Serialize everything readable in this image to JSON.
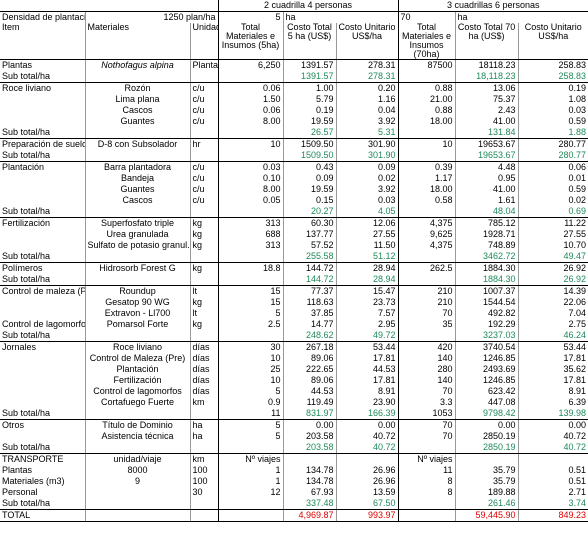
{
  "header": {
    "groups": [
      "2 cuadrilla 4 personas",
      "3 cuadrillas 6 personas"
    ],
    "density_label": "Densidad de plantación",
    "density_value": "1250 plan/ha",
    "area_1": [
      "5",
      "ha"
    ],
    "area_2": [
      "70",
      "ha"
    ],
    "columns": [
      "Item",
      "Materiales",
      "Unidad",
      "Total Materiales e Insumos (5ha)",
      "Costo Total 5 ha (US$)",
      "Costo Unitario US$/ha",
      "Total Materiales e Insumos (70ha)",
      "Costo Total 70 ha (US$)",
      "Costo Unitario US$/ha"
    ]
  },
  "table": {
    "sections": [
      {
        "rows": [
          [
            "Plantas",
            "Nothofagus alpina",
            "Plantas",
            "6,250",
            "1391.57",
            "278.31",
            "87500",
            "18118.23",
            "258.83"
          ]
        ],
        "subtotal": [
          "Sub total/ha",
          null,
          null,
          null,
          "1391.57",
          "278.31",
          null,
          "18,118.23",
          "258.83"
        ]
      },
      {
        "rows": [
          [
            "Roce liviano",
            "Rozón",
            "c/u",
            "0.06",
            "1.00",
            "0.20",
            "0.88",
            "13.06",
            "0.19"
          ],
          [
            null,
            "Lima plana",
            "c/u",
            "1.50",
            "5.79",
            "1.16",
            "21.00",
            "75.37",
            "1.08"
          ],
          [
            null,
            "Cascos",
            "c/u",
            "0.06",
            "0.19",
            "0.04",
            "0.88",
            "2.43",
            "0.03"
          ],
          [
            null,
            "Guantes",
            "c/u",
            "8.00",
            "19.59",
            "3.92",
            "18.00",
            "41.00",
            "0.59"
          ]
        ],
        "subtotal": [
          "Sub total/ha",
          null,
          null,
          null,
          "26.57",
          "5.31",
          null,
          "131.84",
          "1.88"
        ]
      },
      {
        "rows": [
          [
            "Preparación de suelo",
            "D-8 con Subsolador",
            "hr",
            "10",
            "1509.50",
            "301.90",
            "10",
            "19653.67",
            "280.77"
          ]
        ],
        "subtotal": [
          "Sub total/ha",
          null,
          null,
          null,
          "1509.50",
          "301.90",
          null,
          "19653.67",
          "280.77"
        ]
      },
      {
        "rows": [
          [
            "Plantación",
            "Barra plantadora",
            "c/u",
            "0.03",
            "0.43",
            "0.09",
            "0.39",
            "4.48",
            "0.06"
          ],
          [
            null,
            "Bandeja",
            "c/u",
            "0.10",
            "0.09",
            "0.02",
            "1.17",
            "0.95",
            "0.01"
          ],
          [
            null,
            "Guantes",
            "c/u",
            "8.00",
            "19.59",
            "3.92",
            "18.00",
            "41.00",
            "0.59"
          ],
          [
            null,
            "Cascos",
            "c/u",
            "0.05",
            "0.15",
            "0.03",
            "0.58",
            "1.61",
            "0.02"
          ]
        ],
        "subtotal": [
          "Sub total/ha",
          null,
          null,
          null,
          "20.27",
          "4.05",
          null,
          "48.04",
          "0.69"
        ]
      },
      {
        "rows": [
          [
            "Fertilización",
            "Superfosfato triple",
            "kg",
            "313",
            "60.30",
            "12.06",
            "4,375",
            "785.12",
            "11.22"
          ],
          [
            null,
            "Urea granulada",
            "kg",
            "688",
            "137.77",
            "27.55",
            "9,625",
            "1928.71",
            "27.55"
          ],
          [
            null,
            "Sulfato de potasio granul.",
            "kg",
            "313",
            "57.52",
            "11.50",
            "4,375",
            "748.89",
            "10.70"
          ]
        ],
        "subtotal": [
          "Sub total/ha",
          null,
          null,
          null,
          "255.58",
          "51.12",
          null,
          "3462.72",
          "49.47"
        ]
      },
      {
        "rows": [
          [
            "Polímeros",
            "Hidrosorb Forest G",
            "kg",
            "18.8",
            "144.72",
            "28.94",
            "262.5",
            "1884.30",
            "26.92"
          ]
        ],
        "subtotal": [
          "Sub total/ha",
          null,
          null,
          null,
          "144.72",
          "28.94",
          null,
          "1884.30",
          "26.92"
        ]
      },
      {
        "rows": [
          [
            "Control de maleza (Pre",
            "Roundup",
            "lt",
            "15",
            "77.37",
            "15.47",
            "210",
            "1007.37",
            "14.39"
          ],
          [
            null,
            "Gesatop 90 WG",
            "kg",
            "15",
            "118.63",
            "23.73",
            "210",
            "1544.54",
            "22.06"
          ],
          [
            null,
            "Extravon - Ll700",
            "lt",
            "5",
            "37.85",
            "7.57",
            "70",
            "492.82",
            "7.04"
          ],
          [
            "Control de lagomorfos",
            "Pomarsol Forte",
            "kg",
            "2.5",
            "14.77",
            "2.95",
            "35",
            "192.29",
            "2.75"
          ]
        ],
        "subtotal": [
          "Sub total/ha",
          null,
          null,
          null,
          "248.62",
          "49.72",
          null,
          "3237.03",
          "46.24"
        ]
      },
      {
        "rows": [
          [
            "Jornales",
            "Roce liviano",
            "días",
            "30",
            "267.18",
            "53.44",
            "420",
            "3740.54",
            "53.44"
          ],
          [
            null,
            "Control de Maleza (Pre)",
            "días",
            "10",
            "89.06",
            "17.81",
            "140",
            "1246.85",
            "17.81"
          ],
          [
            null,
            "Plantación",
            "días",
            "25",
            "222.65",
            "44.53",
            "280",
            "2493.69",
            "35.62"
          ],
          [
            null,
            "Fertilización",
            "días",
            "10",
            "89.06",
            "17.81",
            "140",
            "1246.85",
            "17.81"
          ],
          [
            null,
            "Control de lagomorfos",
            "días",
            "5",
            "44.53",
            "8.91",
            "70",
            "623.42",
            "8.91"
          ],
          [
            null,
            "Cortafuego Fuerte",
            "km",
            "0.9",
            "119.49",
            "23.90",
            "3.3",
            "447.08",
            "6.39"
          ]
        ],
        "subtotal": [
          "Sub total/ha",
          null,
          null,
          "11",
          "831.97",
          "166.39",
          "1053",
          "9798.42",
          "139.98"
        ]
      },
      {
        "rows": [
          [
            "Otros",
            "Título de Dominio",
            "ha",
            "5",
            "0.00",
            "0.00",
            "70",
            "0.00",
            "0.00"
          ],
          [
            null,
            "Asistencia técnica",
            "ha",
            "5",
            "203.58",
            "40.72",
            "70",
            "2850.19",
            "40.72"
          ]
        ],
        "subtotal": [
          "Sub total/ha",
          null,
          null,
          null,
          "203.58",
          "40.72",
          null,
          "2850.19",
          "40.72"
        ]
      },
      {
        "rows": [
          [
            "TRANSPORTE",
            "unidad/viaje",
            "km",
            "Nº viajes",
            null,
            null,
            "Nº viajes",
            null,
            null
          ],
          [
            "Plantas",
            "8000",
            "100",
            "1",
            "134.78",
            "26.96",
            "11",
            "35.79",
            "0.51"
          ],
          [
            "Materiales (m3)",
            "9",
            "100",
            "1",
            "134.78",
            "26.96",
            "8",
            "35.79",
            "0.51"
          ],
          [
            "Personal",
            null,
            "30",
            "12",
            "67.93",
            "13.59",
            "8",
            "189.88",
            "2.71"
          ]
        ],
        "subtotal": [
          "Sub total/ha",
          null,
          null,
          null,
          "337.48",
          "67.50",
          null,
          "261.46",
          "3.74"
        ]
      }
    ],
    "total": [
      "TOTAL",
      null,
      null,
      null,
      "4,969.87",
      "993.97",
      null,
      "59,445.90",
      "849.23"
    ]
  }
}
